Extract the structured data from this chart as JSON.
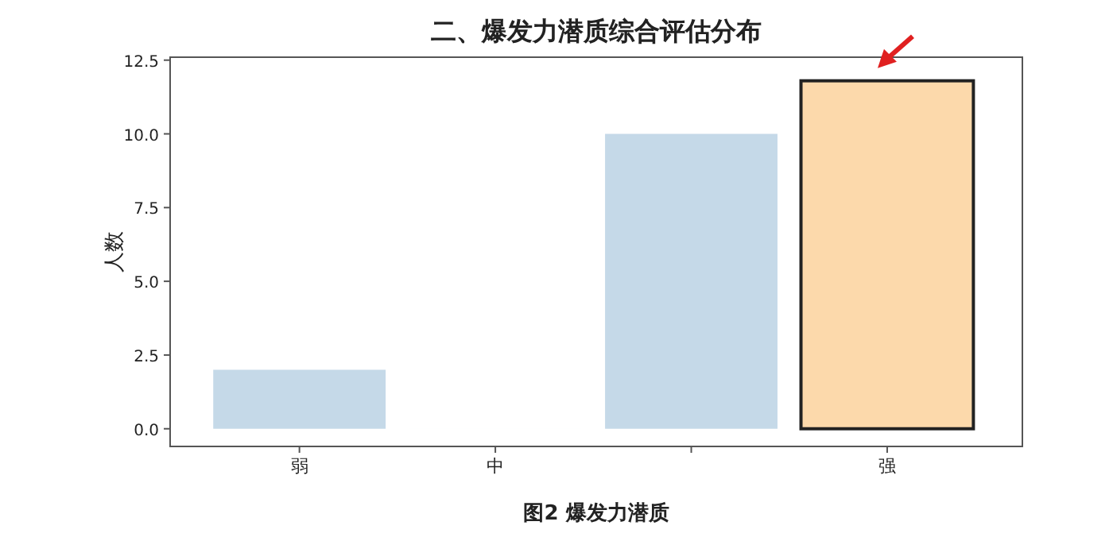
{
  "chart_data": {
    "type": "bar",
    "title": "二、爆发力潜质综合评估分布",
    "xlabel": "图2 爆发力潜质",
    "ylabel": "人数",
    "categories": [
      "弱",
      "中",
      null,
      "强"
    ],
    "values": [
      2,
      0,
      10,
      11.8
    ],
    "colors": [
      "#c5d9e8",
      "#c5d9e8",
      "#c5d9e8",
      "#fcd9ab"
    ],
    "ylim": [
      -0.6,
      12.6
    ],
    "yticks": [
      {
        "value": 0,
        "label": "0.0"
      },
      {
        "value": 2.5,
        "label": "2.5"
      },
      {
        "value": 5,
        "label": "5.0"
      },
      {
        "value": 7.5,
        "label": "7.5"
      },
      {
        "value": 10,
        "label": "10.0"
      },
      {
        "value": 12.5,
        "label": "12.5"
      }
    ],
    "grid": false
  }
}
